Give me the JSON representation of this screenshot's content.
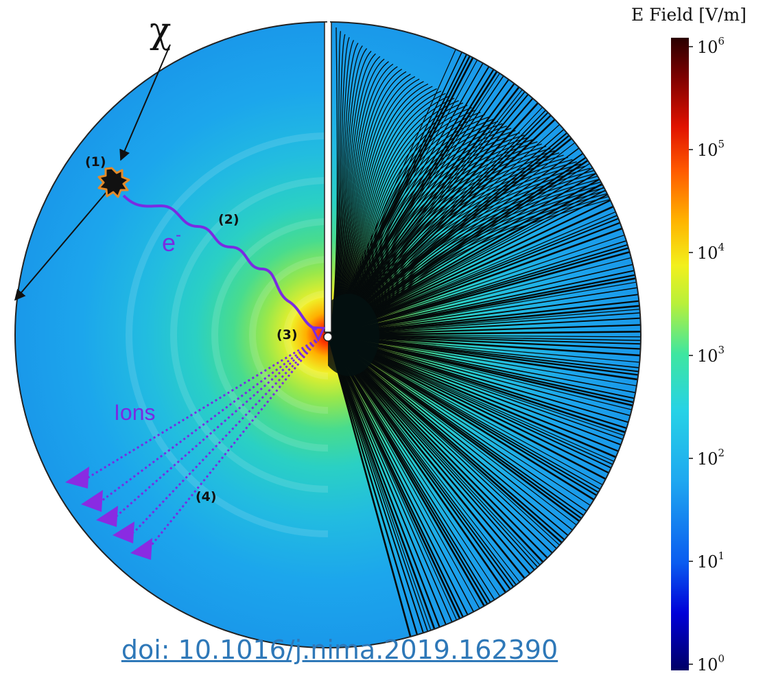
{
  "colorbar": {
    "title": "E Field [V/m]",
    "ticks": [
      {
        "base": "10",
        "exp": "6"
      },
      {
        "base": "10",
        "exp": "5"
      },
      {
        "base": "10",
        "exp": "4"
      },
      {
        "base": "10",
        "exp": "3"
      },
      {
        "base": "10",
        "exp": "2"
      },
      {
        "base": "10",
        "exp": "1"
      },
      {
        "base": "10",
        "exp": "0"
      }
    ],
    "colors": [
      "#000066",
      "#0000d8",
      "#0a5cf0",
      "#1fa8f0",
      "#26d2e6",
      "#3ee6a0",
      "#b8f03a",
      "#f2f01c",
      "#ffb400",
      "#ff5a00",
      "#e01200",
      "#7a0000",
      "#2a0000"
    ]
  },
  "diagram": {
    "particle": "χ",
    "electron_base": "e",
    "electron_sup": "-",
    "ions": "Ions",
    "steps": [
      "(1)",
      "(2)",
      "(3)",
      "(4)"
    ]
  },
  "doi": "doi: 10.1016/j.nima.2019.162390",
  "colors": {
    "accent_purple": "#7a2be2",
    "link_blue": "#2e78b8"
  }
}
